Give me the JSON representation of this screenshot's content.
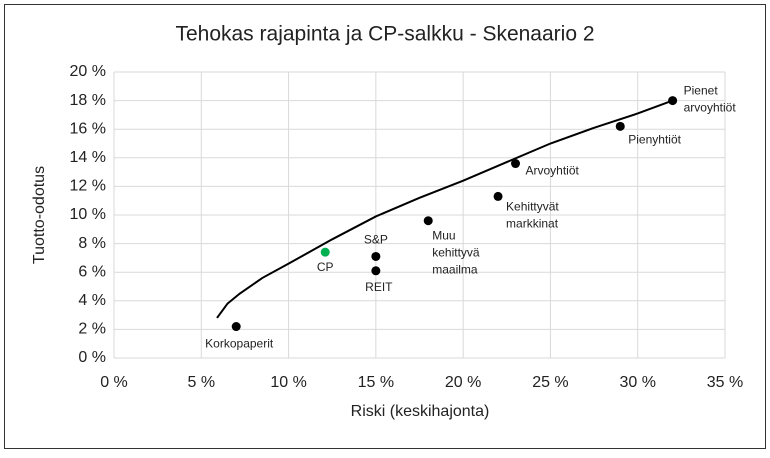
{
  "chart_data": {
    "type": "scatter",
    "title": "Tehokas rajapinta ja CP-salkku - Skenaario 2",
    "x_label": "Riski (keskihajonta)",
    "y_label": "Tuotto-odotus",
    "xlim": [
      0,
      35
    ],
    "ylim": [
      0,
      20
    ],
    "xticks": [
      {
        "value": 0,
        "label": "0 %"
      },
      {
        "value": 5,
        "label": "5 %"
      },
      {
        "value": 10,
        "label": "10 %"
      },
      {
        "value": 15,
        "label": "15 %"
      },
      {
        "value": 20,
        "label": "20 %"
      },
      {
        "value": 25,
        "label": "25 %"
      },
      {
        "value": 30,
        "label": "30 %"
      },
      {
        "value": 35,
        "label": "35 %"
      }
    ],
    "yticks": [
      {
        "value": 0,
        "label": "0 %"
      },
      {
        "value": 2,
        "label": "2 %"
      },
      {
        "value": 4,
        "label": "4 %"
      },
      {
        "value": 6,
        "label": "6 %"
      },
      {
        "value": 8,
        "label": "8 %"
      },
      {
        "value": 10,
        "label": "10 %"
      },
      {
        "value": 12,
        "label": "12 %"
      },
      {
        "value": 14,
        "label": "14 %"
      },
      {
        "value": 16,
        "label": "16 %"
      },
      {
        "value": 18,
        "label": "18 %"
      },
      {
        "value": 20,
        "label": "20 %"
      }
    ],
    "grid": true,
    "frontier": {
      "color": "#000000",
      "x": [
        5.9,
        6.5,
        7.2,
        8.5,
        10,
        12.5,
        15,
        17.5,
        20,
        22.5,
        25,
        27.5,
        30,
        32
      ],
      "values": [
        2.8,
        3.8,
        4.5,
        5.6,
        6.6,
        8.3,
        9.9,
        11.2,
        12.4,
        13.7,
        15.0,
        16.1,
        17.1,
        18.0
      ]
    },
    "points": {
      "labels": [
        [
          "Korkopaperit"
        ],
        [
          "CP"
        ],
        [
          "S&P"
        ],
        [
          "REIT"
        ],
        [
          "Muu",
          "kehittyvä",
          "maailma"
        ],
        [
          "Kehittyvät",
          "markkinat"
        ],
        [
          "Arvoyhtiöt"
        ],
        [
          "Pienyhtiöt"
        ],
        [
          "Pienet",
          "arvoyhtiöt"
        ]
      ],
      "x": [
        7,
        12.1,
        15,
        15,
        18,
        22,
        23,
        29,
        32
      ],
      "values": [
        2.2,
        7.4,
        7.1,
        6.1,
        9.6,
        11.3,
        13.6,
        16.2,
        18.0
      ],
      "colors": [
        "#000000",
        "#00b050",
        "#000000",
        "#000000",
        "#000000",
        "#000000",
        "#000000",
        "#000000",
        "#000000"
      ]
    }
  }
}
